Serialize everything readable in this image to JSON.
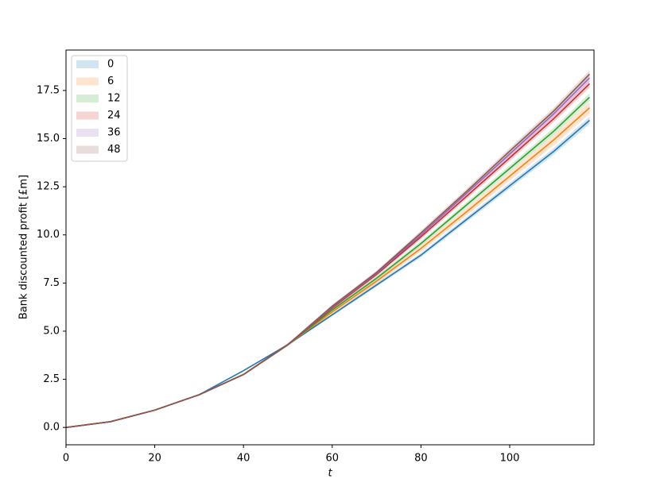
{
  "chart_data": {
    "type": "line",
    "xlabel": "t",
    "ylabel": "Bank discounted profit [£m]",
    "x": [
      0,
      10,
      20,
      30,
      40,
      50,
      60,
      70,
      80,
      90,
      100,
      110,
      118
    ],
    "xlim": [
      0,
      119
    ],
    "ylim": [
      -0.9,
      19.6
    ],
    "xticks": [
      0,
      20,
      40,
      60,
      80,
      100
    ],
    "yticks": [
      {
        "value": 0,
        "label": "0.0"
      },
      {
        "value": 2.5,
        "label": "2.5"
      },
      {
        "value": 5,
        "label": "5.0"
      },
      {
        "value": 7.5,
        "label": "7.5"
      },
      {
        "value": 10,
        "label": "10.0"
      },
      {
        "value": 12.5,
        "label": "12.5"
      },
      {
        "value": 15,
        "label": "15.0"
      },
      {
        "value": 17.5,
        "label": "17.5"
      }
    ],
    "legend": "upper left",
    "series": [
      {
        "name": "0",
        "color": "#1f77b4",
        "values": [
          0,
          0.3,
          0.9,
          1.7,
          2.95,
          4.3,
          5.85,
          7.4,
          8.95,
          10.75,
          12.55,
          14.35,
          15.95
        ],
        "errors": [
          0,
          0,
          0,
          0,
          0.03,
          0.05,
          0.07,
          0.09,
          0.11,
          0.13,
          0.15,
          0.17,
          0.19
        ]
      },
      {
        "name": "6",
        "color": "#ff7f0e",
        "values": [
          0,
          0.3,
          0.9,
          1.7,
          2.75,
          4.3,
          6.0,
          7.6,
          9.3,
          11.15,
          13.05,
          14.95,
          16.6
        ],
        "errors": [
          0,
          0,
          0,
          0,
          0.05,
          0.08,
          0.1,
          0.13,
          0.16,
          0.2,
          0.24,
          0.28,
          0.32
        ]
      },
      {
        "name": "12",
        "color": "#2ca02c",
        "values": [
          0,
          0.3,
          0.9,
          1.7,
          2.75,
          4.3,
          6.1,
          7.75,
          9.55,
          11.5,
          13.45,
          15.4,
          17.15
        ],
        "errors": [
          0,
          0,
          0,
          0,
          0.04,
          0.06,
          0.08,
          0.1,
          0.12,
          0.14,
          0.16,
          0.18,
          0.2
        ]
      },
      {
        "name": "24",
        "color": "#d62728",
        "values": [
          0,
          0.3,
          0.9,
          1.7,
          2.75,
          4.3,
          6.2,
          7.95,
          9.9,
          11.95,
          14.0,
          16.05,
          17.85
        ],
        "errors": [
          0,
          0,
          0,
          0,
          0.04,
          0.06,
          0.08,
          0.1,
          0.12,
          0.14,
          0.16,
          0.18,
          0.2
        ]
      },
      {
        "name": "36",
        "color": "#9467bd",
        "values": [
          0,
          0.3,
          0.9,
          1.7,
          2.75,
          4.3,
          6.25,
          8.0,
          10.0,
          12.1,
          14.2,
          16.3,
          18.15
        ],
        "errors": [
          0,
          0,
          0,
          0,
          0.04,
          0.06,
          0.08,
          0.1,
          0.12,
          0.14,
          0.16,
          0.18,
          0.2
        ]
      },
      {
        "name": "48",
        "color": "#8c564b",
        "values": [
          0,
          0.3,
          0.9,
          1.7,
          2.75,
          4.3,
          6.3,
          8.05,
          10.1,
          12.2,
          14.35,
          16.45,
          18.35
        ],
        "errors": [
          0,
          0,
          0,
          0,
          0.04,
          0.06,
          0.08,
          0.1,
          0.12,
          0.14,
          0.16,
          0.18,
          0.2
        ]
      }
    ]
  }
}
